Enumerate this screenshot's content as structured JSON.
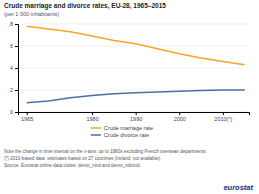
{
  "chart_data": {
    "type": "line",
    "title": "Crude marriage and divorce rates, EU-28, 1965–2015",
    "subtitle": "(per 1 000 inhabitants)",
    "x": [
      1965,
      1970,
      1975,
      1980,
      1985,
      1990,
      1995,
      2000,
      2005,
      2010,
      2015
    ],
    "xlim": [
      1963,
      2016
    ],
    "xticks": [
      1965,
      1980,
      1990,
      2000,
      {
        "value": 2010,
        "label": "2010(*)"
      }
    ],
    "ylim": [
      0,
      8
    ],
    "yticks": [
      0,
      2,
      4,
      6,
      8
    ],
    "grid": true,
    "legend": "bottom",
    "series": [
      {
        "name": "Crude marriage rate",
        "color": "#f5a623",
        "values": [
          7.8,
          7.55,
          7.3,
          6.9,
          6.5,
          6.2,
          5.75,
          5.3,
          4.9,
          4.6,
          4.3
        ]
      },
      {
        "name": "Crude divorce rate",
        "color": "#4a6fa5",
        "values": [
          0.85,
          1.0,
          1.3,
          1.5,
          1.65,
          1.75,
          1.82,
          1.88,
          1.95,
          2.0,
          2.0
        ]
      }
    ],
    "annotations": [
      "Note the change in time interval on the x-axis: up to 1980s excluding French overseas departments.",
      "(*) 2010-based data: estimates based on 27 countries (Ireland: not available).",
      "Source: Eurostat online data codes: demo_nind and demo_ndivind.",
      "eurostat"
    ]
  }
}
